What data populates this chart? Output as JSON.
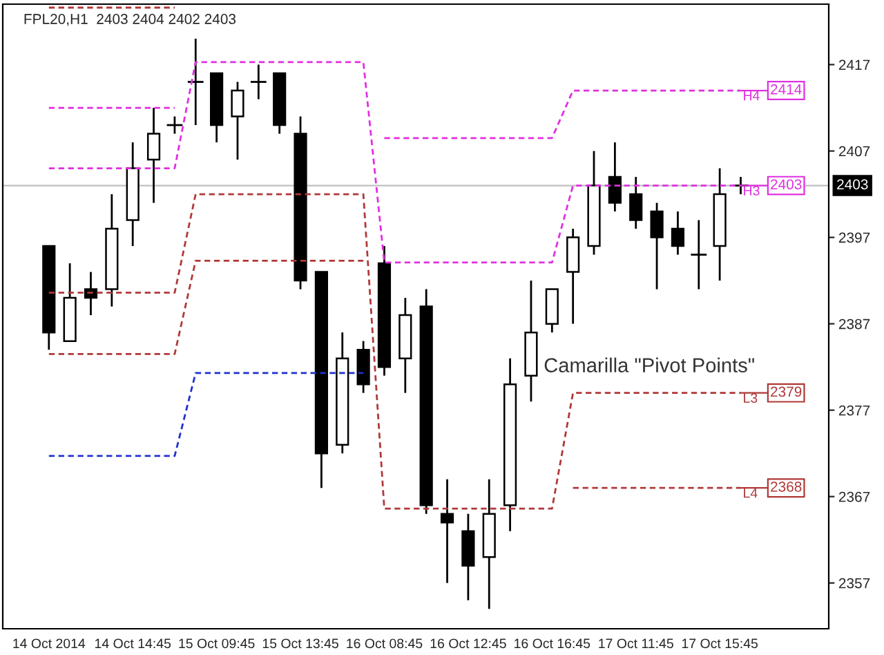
{
  "chart_data": {
    "type": "candlestick",
    "title": "FPL20,H1  2403 2404 2402 2403",
    "categories": [
      "14 Oct 2014",
      null,
      null,
      null,
      "14 Oct 14:45",
      null,
      null,
      null,
      "15 Oct 09:45",
      null,
      null,
      null,
      "15 Oct 13:45",
      null,
      null,
      null,
      "16 Oct 08:45",
      null,
      null,
      null,
      "16 Oct 12:45",
      null,
      null,
      null,
      "16 Oct 16:45",
      null,
      null,
      null,
      "17 Oct 11:45",
      null,
      null,
      null,
      "17 Oct 15:45",
      null
    ],
    "ohlc": [
      [
        2396,
        2396,
        2384,
        2386
      ],
      [
        2385,
        2394,
        2385,
        2390
      ],
      [
        2391,
        2393,
        2388,
        2390
      ],
      [
        2391,
        2402,
        2389,
        2398
      ],
      [
        2399,
        2408,
        2396,
        2405
      ],
      [
        2406,
        2412,
        2401,
        2409
      ],
      [
        2410,
        2411,
        2409,
        2410
      ],
      [
        2415,
        2420,
        2410,
        2415
      ],
      [
        2416,
        2416,
        2408,
        2410
      ],
      [
        2411,
        2415,
        2406,
        2414
      ],
      [
        2415,
        2417,
        2413,
        2415
      ],
      [
        2416,
        2416,
        2409,
        2410
      ],
      [
        2409,
        2411,
        2391,
        2392
      ],
      [
        2393,
        2393,
        2368,
        2372
      ],
      [
        2373,
        2386,
        2372,
        2383
      ],
      [
        2384,
        2385,
        2379,
        2380
      ],
      [
        2394,
        2396,
        2381,
        2382
      ],
      [
        2383,
        2390,
        2379,
        2388
      ],
      [
        2389,
        2391,
        2365,
        2366
      ],
      [
        2365,
        2369,
        2357,
        2364
      ],
      [
        2363,
        2365,
        2355,
        2359
      ],
      [
        2360,
        2369,
        2354,
        2365
      ],
      [
        2366,
        2383,
        2363,
        2380
      ],
      [
        2381,
        2392,
        2378,
        2386
      ],
      [
        2387,
        2391,
        2386,
        2391
      ],
      [
        2393,
        2398,
        2387,
        2397
      ],
      [
        2396,
        2407,
        2395,
        2403
      ],
      [
        2404,
        2408,
        2400,
        2401
      ],
      [
        2402,
        2404,
        2398,
        2399
      ],
      [
        2400,
        2401,
        2391,
        2397
      ],
      [
        2398,
        2400,
        2395,
        2396
      ],
      [
        2395,
        2399,
        2391,
        2395
      ],
      [
        2396,
        2405,
        2392,
        2402
      ],
      [
        2403,
        2404,
        2402,
        2403
      ]
    ],
    "series": [
      {
        "type": "line",
        "name": "H4",
        "value_labels": [
          null,
          null,
          null,
          null,
          null,
          null,
          null,
          null,
          null,
          null,
          null,
          null,
          null,
          null,
          null,
          null,
          null,
          null,
          null,
          null,
          null,
          null,
          null,
          null,
          null,
          null,
          null,
          null,
          null,
          null,
          null,
          null,
          null,
          "2414"
        ],
        "color": "#e030e0",
        "values": [
          2412,
          2412,
          2412,
          2412,
          2412,
          2412,
          2412,
          null,
          null,
          null,
          null,
          null,
          null,
          null,
          null,
          null,
          2408.5,
          2408.5,
          2408.5,
          2408.5,
          2408.5,
          2408.5,
          2408.5,
          2408.5,
          2408.5,
          2414,
          2414,
          2414,
          2414,
          2414,
          2414,
          2414,
          2414,
          2414
        ]
      },
      {
        "type": "line",
        "name": "H3",
        "value_labels": [
          null,
          null,
          null,
          null,
          null,
          null,
          null,
          null,
          null,
          null,
          null,
          null,
          null,
          null,
          null,
          null,
          null,
          null,
          null,
          null,
          null,
          null,
          null,
          null,
          null,
          null,
          null,
          null,
          null,
          null,
          null,
          null,
          null,
          "2403"
        ],
        "color": "#e030e0",
        "values": [
          2405,
          2405,
          2405,
          2405,
          2405,
          2405,
          2405,
          2417.3,
          2417.3,
          2417.3,
          2417.3,
          2417.3,
          2417.3,
          2417.3,
          2417.3,
          2417.3,
          2394.1,
          2394.1,
          2394.1,
          2394.1,
          2394.1,
          2394.1,
          2394.1,
          2394.1,
          2394.1,
          2403,
          2403,
          2403,
          2403,
          2403,
          2403,
          2403,
          2403,
          2403
        ]
      },
      {
        "type": "line",
        "name": "L3",
        "value_labels": [
          null,
          null,
          null,
          null,
          null,
          null,
          null,
          null,
          null,
          null,
          null,
          null,
          null,
          null,
          null,
          null,
          null,
          null,
          null,
          null,
          null,
          null,
          null,
          null,
          null,
          null,
          null,
          null,
          null,
          null,
          null,
          null,
          null,
          "2379"
        ],
        "color": "#b03838",
        "values": [
          2390.6,
          2390.6,
          2390.6,
          2390.6,
          2390.6,
          2390.6,
          2390.6,
          2402,
          2402,
          2402,
          2402,
          2402,
          2402,
          2402,
          2402,
          2402,
          2365.6,
          2365.6,
          2365.6,
          2365.6,
          2365.6,
          2365.6,
          2365.6,
          2365.6,
          2365.6,
          2379,
          2379,
          2379,
          2379,
          2379,
          2379,
          2379,
          2379,
          2379
        ]
      },
      {
        "type": "line",
        "name": "L4",
        "value_labels": [
          null,
          null,
          null,
          null,
          null,
          null,
          null,
          null,
          null,
          null,
          null,
          null,
          null,
          null,
          null,
          null,
          null,
          null,
          null,
          null,
          null,
          null,
          null,
          null,
          null,
          null,
          null,
          null,
          null,
          null,
          null,
          null,
          null,
          "2368"
        ],
        "color": "#b03838",
        "values": [
          2383.5,
          2383.5,
          2383.5,
          2383.5,
          2383.5,
          2383.5,
          2383.5,
          2394.3,
          2394.3,
          2394.3,
          2394.3,
          2394.3,
          2394.3,
          2394.3,
          2394.3,
          2394.3,
          null,
          null,
          null,
          null,
          null,
          null,
          null,
          null,
          null,
          2368,
          2368,
          2368,
          2368,
          2368,
          2368,
          2368,
          2368,
          2368
        ]
      },
      {
        "type": "line",
        "color": "#2030d0",
        "values": [
          2371.7,
          2371.7,
          2371.7,
          2371.7,
          2371.7,
          2371.7,
          2371.7,
          2381.3,
          2381.3,
          2381.3,
          2381.3,
          2381.3,
          2381.3,
          2381.3,
          2381.3,
          2381.3,
          null,
          null,
          null,
          null,
          null,
          null,
          null,
          null,
          null,
          null,
          null,
          null,
          null,
          null,
          null,
          null,
          null,
          null
        ]
      },
      {
        "type": "line",
        "color": "#b03838",
        "values": [
          2423.6,
          2423.6,
          2423.6,
          2423.6,
          2423.6,
          2423.6,
          2423.6,
          null,
          null,
          null,
          null,
          null,
          null,
          null,
          null,
          null,
          null,
          null,
          null,
          null,
          null,
          null,
          null,
          null,
          null,
          null,
          null,
          null,
          null,
          null,
          null,
          null,
          null,
          null
        ]
      }
    ],
    "line_style": "dashed",
    "ylim": [
      2351.7,
      2424
    ],
    "yticks": [
      2357,
      2367,
      2377,
      2387,
      2397,
      2407,
      2417
    ],
    "ref_lines": [
      {
        "axis": "y",
        "value": 2403,
        "label": "2403",
        "color": "#c0c0c0"
      }
    ],
    "annotations": [
      "Camarilla \"Pivot Points\""
    ],
    "grid": false,
    "legend": "right"
  }
}
